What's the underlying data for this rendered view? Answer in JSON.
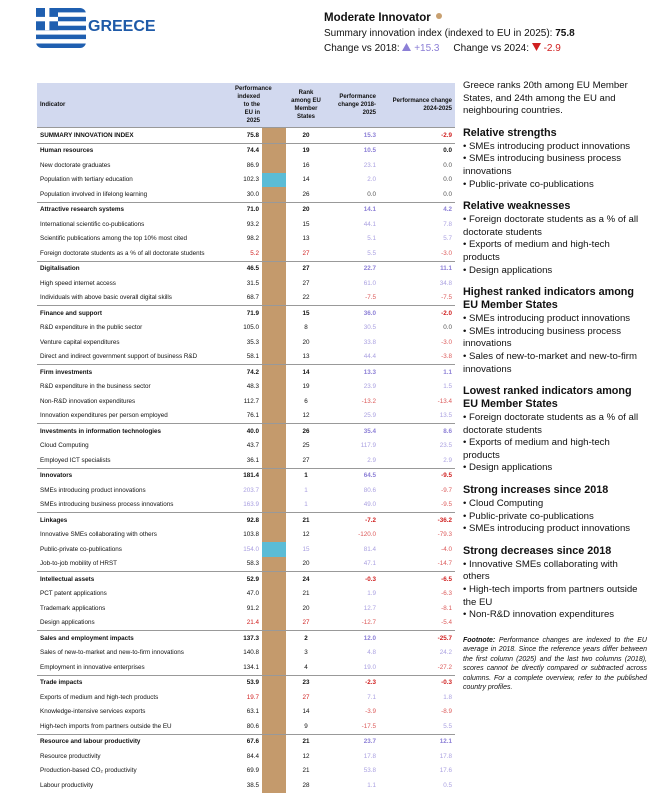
{
  "header": {
    "country": "GREECE",
    "group": "Moderate Innovator",
    "group_color": "#c8a070",
    "summary_label": "Summary innovation index (indexed to EU in 2025):",
    "summary_value": "75.8",
    "change_2018_label": "Change vs 2018:",
    "change_2018_value": "+15.3",
    "change_2024_label": "Change vs 2024:",
    "change_2024_value": "-2.9"
  },
  "table": {
    "columns": [
      "Indicator",
      "Performance indexed to the EU in 2025",
      "Rank among EU Member States",
      "Performance change 2018-2025",
      "Performance change 2024-2025"
    ],
    "bar_color": "#c49a6c",
    "positive_color": "#8c7fd6",
    "negative_color": "#d02020",
    "rows": [
      {
        "name": "SUMMARY INNOVATION INDEX",
        "perf": "75.8",
        "rank": "20",
        "ch18": "15.3",
        "ch24": "-2.9",
        "bold": true
      },
      {
        "name": "Human resources",
        "perf": "74.4",
        "rank": "19",
        "ch18": "10.5",
        "ch24": "0.0",
        "bold": true
      },
      {
        "name": "New doctorate graduates",
        "perf": "86.9",
        "rank": "16",
        "ch18": "23.1",
        "ch24": "0.0"
      },
      {
        "name": "Population with tertiary education",
        "perf": "102.3",
        "rank": "14",
        "ch18": "2.0",
        "ch24": "0.0",
        "bar": "#5bbcd6"
      },
      {
        "name": "Population involved in lifelong learning",
        "perf": "30.0",
        "rank": "26",
        "ch18": "0.0",
        "ch24": "0.0"
      },
      {
        "name": "Attractive research systems",
        "perf": "71.0",
        "rank": "20",
        "ch18": "14.1",
        "ch24": "4.2",
        "bold": true
      },
      {
        "name": "International scientific co-publications",
        "perf": "93.2",
        "rank": "15",
        "ch18": "44.1",
        "ch24": "7.8"
      },
      {
        "name": "Scientific publications among the top 10% most cited",
        "perf": "98.2",
        "rank": "13",
        "ch18": "5.1",
        "ch24": "5.7"
      },
      {
        "name": "Foreign doctorate students as a % of all doctorate students",
        "perf": "5.2",
        "rank": "27",
        "ch18": "5.5",
        "ch24": "-3.0",
        "color": "#d02020"
      },
      {
        "name": "Digitalisation",
        "perf": "46.5",
        "rank": "27",
        "ch18": "22.7",
        "ch24": "11.1",
        "bold": true
      },
      {
        "name": "High speed internet access",
        "perf": "31.5",
        "rank": "27",
        "ch18": "61.0",
        "ch24": "34.8"
      },
      {
        "name": "Individuals with above basic overall digital skills",
        "perf": "68.7",
        "rank": "22",
        "ch18": "-7.5",
        "ch24": "-7.5"
      },
      {
        "name": "Finance and support",
        "perf": "71.9",
        "rank": "15",
        "ch18": "36.0",
        "ch24": "-2.0",
        "bold": true
      },
      {
        "name": "R&D expenditure in the public sector",
        "perf": "105.0",
        "rank": "8",
        "ch18": "30.5",
        "ch24": "0.0"
      },
      {
        "name": "Venture capital expenditures",
        "perf": "35.3",
        "rank": "20",
        "ch18": "33.8",
        "ch24": "-3.0"
      },
      {
        "name": "Direct and indirect government support of business R&D",
        "perf": "58.1",
        "rank": "13",
        "ch18": "44.4",
        "ch24": "-3.8"
      },
      {
        "name": "Firm investments",
        "perf": "74.2",
        "rank": "14",
        "ch18": "13.3",
        "ch24": "1.1",
        "bold": true
      },
      {
        "name": "R&D expenditure in the business sector",
        "perf": "48.3",
        "rank": "19",
        "ch18": "23.9",
        "ch24": "1.5"
      },
      {
        "name": "Non-R&D innovation expenditures",
        "perf": "112.7",
        "rank": "6",
        "ch18": "-13.2",
        "ch24": "-13.4"
      },
      {
        "name": "Innovation expenditures per person employed",
        "perf": "76.1",
        "rank": "12",
        "ch18": "25.9",
        "ch24": "13.5"
      },
      {
        "name": "Investments in information technologies",
        "perf": "40.0",
        "rank": "26",
        "ch18": "35.4",
        "ch24": "8.6",
        "bold": true
      },
      {
        "name": "Cloud Computing",
        "perf": "43.7",
        "rank": "25",
        "ch18": "117.9",
        "ch24": "23.5"
      },
      {
        "name": "Employed ICT specialists",
        "perf": "36.1",
        "rank": "27",
        "ch18": "2.9",
        "ch24": "2.9"
      },
      {
        "name": "Innovators",
        "perf": "181.4",
        "rank": "1",
        "ch18": "64.5",
        "ch24": "-9.5",
        "bold": true
      },
      {
        "name": "SMEs introducing product innovations",
        "perf": "203.7",
        "rank": "1",
        "ch18": "80.6",
        "ch24": "-9.7",
        "color": "#a89ee0"
      },
      {
        "name": "SMEs introducing business process innovations",
        "perf": "163.9",
        "rank": "1",
        "ch18": "49.0",
        "ch24": "-9.5",
        "color": "#a89ee0"
      },
      {
        "name": "Linkages",
        "perf": "92.8",
        "rank": "21",
        "ch18": "-7.2",
        "ch24": "-36.2",
        "bold": true
      },
      {
        "name": "Innovative SMEs collaborating with others",
        "perf": "103.8",
        "rank": "12",
        "ch18": "-120.0",
        "ch24": "-79.3"
      },
      {
        "name": "Public-private co-publications",
        "perf": "154.0",
        "rank": "15",
        "ch18": "81.4",
        "ch24": "-4.0",
        "color": "#a89ee0",
        "bar": "#5bbcd6"
      },
      {
        "name": "Job-to-job mobility of HRST",
        "perf": "58.3",
        "rank": "20",
        "ch18": "47.1",
        "ch24": "-14.7"
      },
      {
        "name": "Intellectual assets",
        "perf": "52.9",
        "rank": "24",
        "ch18": "-0.3",
        "ch24": "-6.5",
        "bold": true
      },
      {
        "name": "PCT patent applications",
        "perf": "47.0",
        "rank": "21",
        "ch18": "1.9",
        "ch24": "-6.3"
      },
      {
        "name": "Trademark applications",
        "perf": "91.2",
        "rank": "20",
        "ch18": "12.7",
        "ch24": "-8.1"
      },
      {
        "name": "Design applications",
        "perf": "21.4",
        "rank": "27",
        "ch18": "-12.7",
        "ch24": "-5.4",
        "color": "#d02020"
      },
      {
        "name": "Sales and employment impacts",
        "perf": "137.3",
        "rank": "2",
        "ch18": "12.0",
        "ch24": "-25.7",
        "bold": true
      },
      {
        "name": "Sales of new-to-market and new-to-firm innovations",
        "perf": "140.8",
        "rank": "3",
        "ch18": "4.8",
        "ch24": "24.2"
      },
      {
        "name": "Employment in innovative enterprises",
        "perf": "134.1",
        "rank": "4",
        "ch18": "19.0",
        "ch24": "-27.2"
      },
      {
        "name": "Trade impacts",
        "perf": "53.9",
        "rank": "23",
        "ch18": "-2.3",
        "ch24": "-0.3",
        "bold": true
      },
      {
        "name": "Exports of medium and high-tech products",
        "perf": "19.7",
        "rank": "27",
        "ch18": "7.1",
        "ch24": "1.8",
        "color": "#d02020"
      },
      {
        "name": "Knowledge-intensive services exports",
        "perf": "63.1",
        "rank": "14",
        "ch18": "-3.9",
        "ch24": "-8.9"
      },
      {
        "name": "High-tech imports from partners outside the EU",
        "perf": "80.6",
        "rank": "9",
        "ch18": "-17.5",
        "ch24": "5.5"
      },
      {
        "name": "Resource and labour productivity",
        "perf": "67.6",
        "rank": "21",
        "ch18": "23.7",
        "ch24": "12.1",
        "bold": true
      },
      {
        "name": "Resource productivity",
        "perf": "84.4",
        "rank": "12",
        "ch18": "17.8",
        "ch24": "17.8"
      },
      {
        "name": "Production-based CO₂ productivity",
        "perf": "69.9",
        "rank": "21",
        "ch18": "53.8",
        "ch24": "17.6"
      },
      {
        "name": "Labour productivity",
        "perf": "38.5",
        "rank": "28",
        "ch18": "1.1",
        "ch24": "0.5"
      }
    ]
  },
  "panel": {
    "intro": "Greece ranks 20th among EU Member States, and 24th among the EU and neighbouring countries.",
    "sections": [
      {
        "heading": "Relative strengths",
        "items": [
          "SMEs introducing product innovations",
          "SMEs introducing business process innovations",
          "Public-private co-publications"
        ]
      },
      {
        "heading": "Relative weaknesses",
        "items": [
          "Foreign doctorate students as a % of all doctorate students",
          "Exports of medium and high-tech products",
          "Design applications"
        ]
      },
      {
        "heading": "Highest ranked indicators among EU Member States",
        "items": [
          "SMEs introducing product innovations",
          "SMEs introducing business process innovations",
          "Sales of new-to-market and new-to-firm innovations"
        ]
      },
      {
        "heading": "Lowest ranked indicators among EU Member States",
        "items": [
          "Foreign doctorate students as a % of all doctorate students",
          "Exports of medium and high-tech products",
          "Design applications"
        ]
      },
      {
        "heading": "Strong increases since 2018",
        "items": [
          "Cloud Computing",
          "Public-private co-publications",
          "SMEs introducing product innovations"
        ]
      },
      {
        "heading": "Strong decreases since 2018",
        "items": [
          "Innovative SMEs collaborating with others",
          "High-tech imports from partners outside the EU",
          "Non-R&D innovation expenditures"
        ]
      }
    ],
    "footnote_label": "Footnote:",
    "footnote": "Performance changes are indexed to the EU average in 2018. Since the reference years differ between the first column (2025) and the last two columns (2018), scores cannot be directly compared or subtracted across columns. For a complete overview, refer to the published country profiles."
  }
}
